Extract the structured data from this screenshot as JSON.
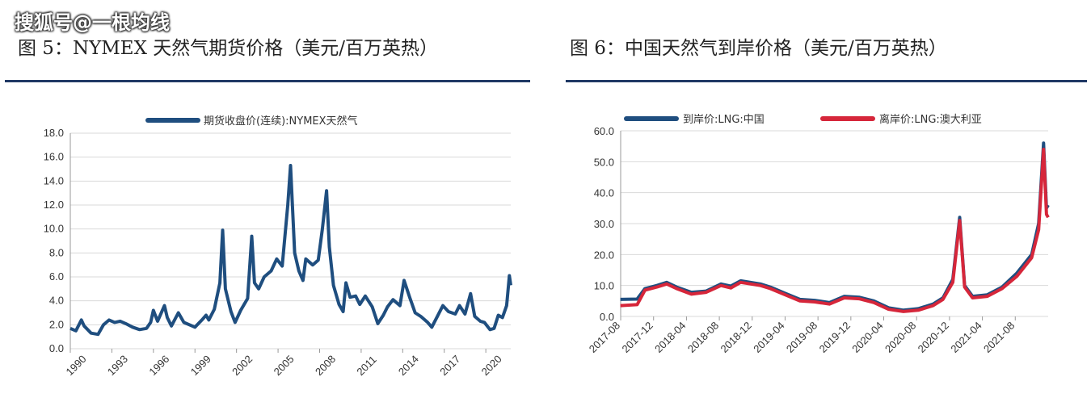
{
  "watermark": "搜狐号@一根均线",
  "figures": {
    "left_title": "图 5：NYMEX 天然气期货价格（美元/百万英热）",
    "right_title": "图 6：中国天然气到岸价格（美元/百万英热）"
  },
  "colors": {
    "blue": "#1f4e7f",
    "red": "#d6263a",
    "grid": "#d9d9d9",
    "rule": "#1f3864"
  },
  "chart_data": [
    {
      "type": "line",
      "title": "图 5：NYMEX 天然气期货价格（美元/百万英热）",
      "xlim": [
        1990,
        2021.8
      ],
      "ylim": [
        0,
        18
      ],
      "yticks": [
        "0.0",
        "2.0",
        "4.0",
        "6.0",
        "8.0",
        "10.0",
        "12.0",
        "14.0",
        "16.0",
        "18.0"
      ],
      "xticks": [
        1990,
        1993,
        1996,
        1999,
        2002,
        2005,
        2008,
        2011,
        2014,
        2017,
        2020
      ],
      "series": [
        {
          "name": "期货收盘价(连续):NYMEX天然气",
          "color": "#1f4e7f",
          "points": [
            [
              1990.0,
              1.7
            ],
            [
              1990.4,
              1.5
            ],
            [
              1990.8,
              2.4
            ],
            [
              1991.0,
              1.9
            ],
            [
              1991.5,
              1.3
            ],
            [
              1992.0,
              1.2
            ],
            [
              1992.4,
              2.0
            ],
            [
              1992.8,
              2.4
            ],
            [
              1993.2,
              2.2
            ],
            [
              1993.6,
              2.3
            ],
            [
              1994.0,
              2.1
            ],
            [
              1994.5,
              1.8
            ],
            [
              1995.0,
              1.6
            ],
            [
              1995.5,
              1.7
            ],
            [
              1995.8,
              2.2
            ],
            [
              1996.0,
              3.2
            ],
            [
              1996.3,
              2.3
            ],
            [
              1996.8,
              3.6
            ],
            [
              1997.0,
              2.6
            ],
            [
              1997.3,
              1.9
            ],
            [
              1997.8,
              3.0
            ],
            [
              1998.2,
              2.2
            ],
            [
              1998.8,
              1.9
            ],
            [
              1999.0,
              1.8
            ],
            [
              1999.5,
              2.4
            ],
            [
              1999.8,
              2.8
            ],
            [
              2000.0,
              2.4
            ],
            [
              2000.4,
              3.3
            ],
            [
              2000.8,
              5.5
            ],
            [
              2001.0,
              9.9
            ],
            [
              2001.2,
              5.0
            ],
            [
              2001.6,
              3.1
            ],
            [
              2001.9,
              2.2
            ],
            [
              2002.3,
              3.2
            ],
            [
              2002.8,
              4.2
            ],
            [
              2003.1,
              9.4
            ],
            [
              2003.3,
              5.5
            ],
            [
              2003.6,
              5.0
            ],
            [
              2004.0,
              6.0
            ],
            [
              2004.5,
              6.5
            ],
            [
              2004.9,
              7.5
            ],
            [
              2005.3,
              6.9
            ],
            [
              2005.7,
              12.0
            ],
            [
              2005.9,
              15.3
            ],
            [
              2006.2,
              8.0
            ],
            [
              2006.5,
              6.5
            ],
            [
              2006.8,
              5.7
            ],
            [
              2007.0,
              7.5
            ],
            [
              2007.5,
              7.0
            ],
            [
              2007.9,
              7.4
            ],
            [
              2008.2,
              10.0
            ],
            [
              2008.5,
              13.2
            ],
            [
              2008.7,
              8.5
            ],
            [
              2009.0,
              5.3
            ],
            [
              2009.4,
              3.7
            ],
            [
              2009.7,
              3.1
            ],
            [
              2009.9,
              5.5
            ],
            [
              2010.2,
              4.3
            ],
            [
              2010.6,
              4.4
            ],
            [
              2010.9,
              3.7
            ],
            [
              2011.3,
              4.4
            ],
            [
              2011.8,
              3.5
            ],
            [
              2012.2,
              2.1
            ],
            [
              2012.6,
              2.8
            ],
            [
              2012.9,
              3.5
            ],
            [
              2013.3,
              4.1
            ],
            [
              2013.8,
              3.6
            ],
            [
              2014.1,
              5.7
            ],
            [
              2014.5,
              4.3
            ],
            [
              2014.9,
              3.0
            ],
            [
              2015.3,
              2.7
            ],
            [
              2015.8,
              2.2
            ],
            [
              2016.1,
              1.8
            ],
            [
              2016.5,
              2.7
            ],
            [
              2016.9,
              3.6
            ],
            [
              2017.3,
              3.1
            ],
            [
              2017.8,
              2.9
            ],
            [
              2018.1,
              3.6
            ],
            [
              2018.5,
              2.9
            ],
            [
              2018.9,
              4.6
            ],
            [
              2019.2,
              2.7
            ],
            [
              2019.6,
              2.3
            ],
            [
              2019.9,
              2.2
            ],
            [
              2020.3,
              1.6
            ],
            [
              2020.6,
              1.7
            ],
            [
              2020.9,
              2.8
            ],
            [
              2021.2,
              2.6
            ],
            [
              2021.5,
              3.6
            ],
            [
              2021.7,
              6.1
            ],
            [
              2021.8,
              5.3
            ]
          ]
        }
      ]
    },
    {
      "type": "line",
      "title": "图 6：中国天然气到岸价格（美元/百万英热）",
      "xlim": [
        2017.583,
        2021.917
      ],
      "ylim": [
        0,
        60
      ],
      "yticks": [
        "0.0",
        "10.0",
        "20.0",
        "30.0",
        "40.0",
        "50.0",
        "60.0"
      ],
      "xticks": [
        "2017-08",
        "2017-12",
        "2018-04",
        "2018-08",
        "2018-12",
        "2019-04",
        "2019-08",
        "2019-12",
        "2020-04",
        "2020-08",
        "2020-12",
        "2021-04",
        "2021-08"
      ],
      "series": [
        {
          "name": "到岸价:LNG:中国",
          "color": "#1f4e7f",
          "points": [
            [
              2017.58,
              5.5
            ],
            [
              2017.75,
              5.6
            ],
            [
              2017.83,
              9.0
            ],
            [
              2017.95,
              10.0
            ],
            [
              2018.05,
              11.0
            ],
            [
              2018.15,
              9.5
            ],
            [
              2018.3,
              7.8
            ],
            [
              2018.45,
              8.2
            ],
            [
              2018.6,
              10.5
            ],
            [
              2018.7,
              9.8
            ],
            [
              2018.8,
              11.5
            ],
            [
              2019.0,
              10.5
            ],
            [
              2019.1,
              9.5
            ],
            [
              2019.25,
              7.5
            ],
            [
              2019.4,
              5.5
            ],
            [
              2019.55,
              5.2
            ],
            [
              2019.7,
              4.5
            ],
            [
              2019.85,
              6.5
            ],
            [
              2020.0,
              6.2
            ],
            [
              2020.15,
              5.0
            ],
            [
              2020.3,
              2.8
            ],
            [
              2020.45,
              2.0
            ],
            [
              2020.6,
              2.5
            ],
            [
              2020.75,
              4.0
            ],
            [
              2020.85,
              6.0
            ],
            [
              2020.95,
              12.0
            ],
            [
              2021.02,
              32.0
            ],
            [
              2021.07,
              10.0
            ],
            [
              2021.15,
              6.5
            ],
            [
              2021.3,
              7.0
            ],
            [
              2021.45,
              9.5
            ],
            [
              2021.6,
              14.0
            ],
            [
              2021.75,
              20.0
            ],
            [
              2021.82,
              30.0
            ],
            [
              2021.87,
              56.0
            ],
            [
              2021.9,
              35.0
            ],
            [
              2021.917,
              36.0
            ]
          ]
        },
        {
          "name": "离岸价:LNG:澳大利亚",
          "color": "#d6263a",
          "points": [
            [
              2017.58,
              3.5
            ],
            [
              2017.75,
              3.8
            ],
            [
              2017.83,
              8.5
            ],
            [
              2017.95,
              9.5
            ],
            [
              2018.05,
              10.5
            ],
            [
              2018.15,
              9.0
            ],
            [
              2018.3,
              7.2
            ],
            [
              2018.45,
              7.8
            ],
            [
              2018.6,
              10.0
            ],
            [
              2018.7,
              9.2
            ],
            [
              2018.8,
              11.0
            ],
            [
              2019.0,
              10.0
            ],
            [
              2019.1,
              9.0
            ],
            [
              2019.25,
              7.0
            ],
            [
              2019.4,
              5.0
            ],
            [
              2019.55,
              4.7
            ],
            [
              2019.7,
              4.0
            ],
            [
              2019.85,
              6.0
            ],
            [
              2020.0,
              5.7
            ],
            [
              2020.15,
              4.5
            ],
            [
              2020.3,
              2.3
            ],
            [
              2020.45,
              1.6
            ],
            [
              2020.6,
              2.0
            ],
            [
              2020.75,
              3.5
            ],
            [
              2020.85,
              5.5
            ],
            [
              2020.95,
              11.0
            ],
            [
              2021.02,
              31.0
            ],
            [
              2021.07,
              9.5
            ],
            [
              2021.15,
              6.0
            ],
            [
              2021.3,
              6.5
            ],
            [
              2021.45,
              9.0
            ],
            [
              2021.6,
              13.0
            ],
            [
              2021.75,
              19.0
            ],
            [
              2021.82,
              28.0
            ],
            [
              2021.87,
              54.0
            ],
            [
              2021.9,
              33.0
            ],
            [
              2021.917,
              32.0
            ]
          ]
        }
      ]
    }
  ]
}
